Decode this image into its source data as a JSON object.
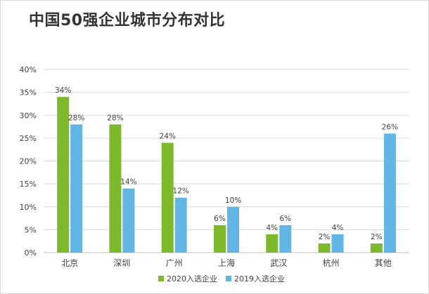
{
  "title": "中国50强企业城市分布对比",
  "chart_data": {
    "type": "bar",
    "title": "中国50强企业城市分布对比",
    "categories": [
      "北京",
      "深圳",
      "广州",
      "上海",
      "武汉",
      "杭州",
      "其他"
    ],
    "series": [
      {
        "name": "2020入选企业",
        "color": "#7cba2c",
        "values": [
          34,
          28,
          24,
          6,
          4,
          2,
          2
        ],
        "labels": [
          "34%",
          "28%",
          "24%",
          "6%",
          "4%",
          "2%",
          "2%"
        ]
      },
      {
        "name": "2019入选企业",
        "color": "#62b6e6",
        "values": [
          28,
          14,
          12,
          10,
          6,
          4,
          26
        ],
        "labels": [
          "28%",
          "14%",
          "12%",
          "10%",
          "6%",
          "4%",
          "26%"
        ]
      }
    ],
    "y_ticks": [
      "0%",
      "5%",
      "10%",
      "15%",
      "20%",
      "25%",
      "30%",
      "35%",
      "40%"
    ],
    "ylim": [
      0,
      40
    ],
    "ystep": 5,
    "xlabel": "",
    "ylabel": "",
    "grid": true,
    "legend_position": "bottom"
  }
}
